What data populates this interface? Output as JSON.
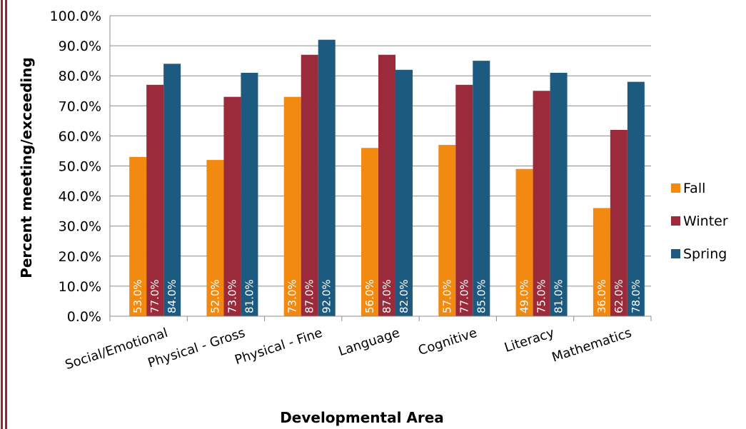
{
  "chart_data": {
    "type": "bar",
    "title": "",
    "xlabel": "Developmental Area",
    "ylabel": "Percent meeting/exceeding",
    "ylim": [
      0,
      100
    ],
    "y_ticks": [
      "0.0%",
      "10.0%",
      "20.0%",
      "30.0%",
      "40.0%",
      "50.0%",
      "60.0%",
      "70.0%",
      "80.0%",
      "90.0%",
      "100.0%"
    ],
    "grid": true,
    "legend_position": "right",
    "categories": [
      "Social/Emotional",
      "Physical - Gross",
      "Physical - Fine",
      "Language",
      "Cognitive",
      "Literacy",
      "Mathematics"
    ],
    "series": [
      {
        "name": "Fall",
        "color": "#f28a12",
        "values": [
          53,
          52,
          73,
          56,
          57,
          49,
          36
        ],
        "labels": [
          "53.0%",
          "52.0%",
          "73.0%",
          "56.0%",
          "57.0%",
          "49.0%",
          "36.0%"
        ]
      },
      {
        "name": "Winter",
        "color": "#9b2a3a",
        "values": [
          77,
          73,
          87,
          87,
          77,
          75,
          62
        ],
        "labels": [
          "77.0%",
          "73.0%",
          "87.0%",
          "87.0%",
          "77.0%",
          "75.0%",
          "62.0%"
        ]
      },
      {
        "name": "Spring",
        "color": "#1c5a80",
        "values": [
          84,
          81,
          92,
          82,
          85,
          81,
          78
        ],
        "labels": [
          "84.0%",
          "81.0%",
          "92.0%",
          "82.0%",
          "85.0%",
          "81.0%",
          "78.0%"
        ]
      }
    ],
    "edge_color": "#9b2335"
  }
}
